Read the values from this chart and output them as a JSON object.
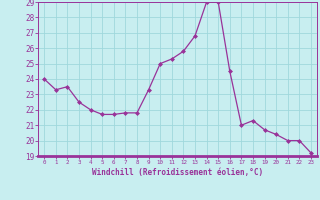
{
  "x": [
    0,
    1,
    2,
    3,
    4,
    5,
    6,
    7,
    8,
    9,
    10,
    11,
    12,
    13,
    14,
    15,
    16,
    17,
    18,
    19,
    20,
    21,
    22,
    23
  ],
  "y": [
    24,
    23.3,
    23.5,
    22.5,
    22,
    21.7,
    21.7,
    21.8,
    21.8,
    23.3,
    25,
    25.3,
    25.8,
    26.8,
    29,
    29,
    24.5,
    21,
    21.3,
    20.7,
    20.4,
    20,
    20,
    19.2
  ],
  "line_color": "#993399",
  "marker_color": "#993399",
  "bg_color": "#c8eef0",
  "grid_color": "#a0d8dc",
  "axis_color": "#993399",
  "tick_color": "#993399",
  "xlabel": "Windchill (Refroidissement éolien,°C)",
  "ylim": [
    19,
    29
  ],
  "xlim": [
    -0.5,
    23.5
  ],
  "yticks": [
    19,
    20,
    21,
    22,
    23,
    24,
    25,
    26,
    27,
    28,
    29
  ],
  "xticks": [
    0,
    1,
    2,
    3,
    4,
    5,
    6,
    7,
    8,
    9,
    10,
    11,
    12,
    13,
    14,
    15,
    16,
    17,
    18,
    19,
    20,
    21,
    22,
    23
  ]
}
